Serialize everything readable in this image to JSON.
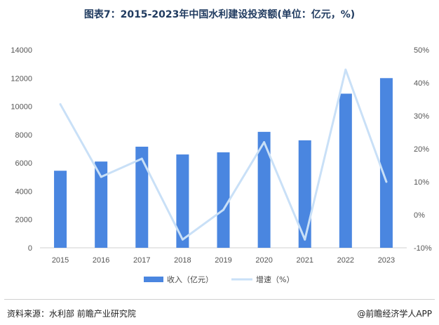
{
  "chart_data": {
    "type": "bar",
    "title": "图表7：2015-2023年中国水利建设投资额(单位：亿元，%)",
    "categories": [
      "2015",
      "2016",
      "2017",
      "2018",
      "2019",
      "2020",
      "2021",
      "2022",
      "2023"
    ],
    "series": [
      {
        "name": "收入（亿元）",
        "type": "bar",
        "axis": "left",
        "color": "#4a86e0",
        "values": [
          5450,
          6100,
          7150,
          6600,
          6750,
          8200,
          7600,
          10900,
          12000
        ]
      },
      {
        "name": "增速（%）",
        "type": "line",
        "axis": "right",
        "color": "#c9e0f7",
        "values": [
          33.5,
          11.5,
          17,
          -7.5,
          1.5,
          22,
          -7.5,
          44,
          10
        ]
      }
    ],
    "y_left": {
      "min": 0,
      "max": 14000,
      "ticks": [
        "0",
        "2000",
        "4000",
        "6000",
        "8000",
        "10000",
        "12000",
        "14000"
      ]
    },
    "y_right": {
      "min": -10,
      "max": 50,
      "ticks": [
        "-10%",
        "0%",
        "10%",
        "20%",
        "30%",
        "40%",
        "50%"
      ]
    },
    "grid": false,
    "legend_position": "bottom"
  },
  "footer": {
    "source": "资料来源：水利部 前瞻产业研究院",
    "brand": "@前瞻经济学人APP"
  }
}
